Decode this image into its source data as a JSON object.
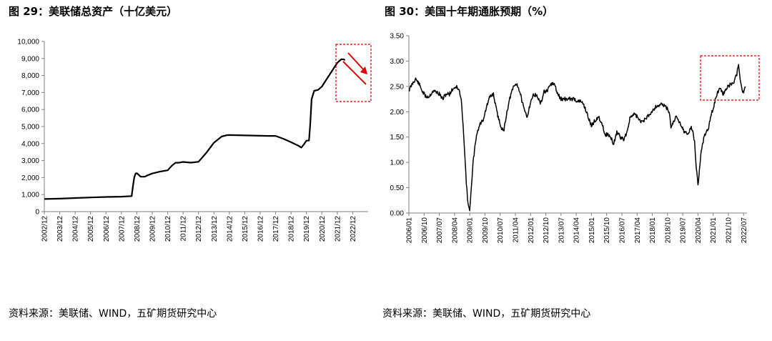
{
  "charts": [
    {
      "figure_title": "图 29：美联储总资产（十亿美元）",
      "source": "资料来源：美联储、WIND，五矿期货研究中心"
    },
    {
      "figure_title": "图 30：美国十年期通胀预期（%）",
      "source": "资料来源：美联储、WIND，五矿期货研究中心"
    }
  ],
  "colors": {
    "line": "#000000",
    "annotation": "#e00000",
    "axis": "#808080"
  },
  "chart_data": [
    {
      "type": "line",
      "title": "图 29：美联储总资产（十亿美元）",
      "xlabel": "",
      "ylabel": "",
      "ylim": [
        0,
        10000
      ],
      "y_ticks": [
        0,
        1000,
        2000,
        3000,
        4000,
        5000,
        6000,
        7000,
        8000,
        9000,
        10000
      ],
      "y_tick_labels": [
        "0",
        "1,000",
        "2,000",
        "3,000",
        "4,000",
        "5,000",
        "6,000",
        "7,000",
        "8,000",
        "9,000",
        "10,000"
      ],
      "x_ticks": [
        "2002/12",
        "2003/12",
        "2004/12",
        "2005/12",
        "2006/12",
        "2007/12",
        "2008/12",
        "2009/12",
        "2010/12",
        "2011/12",
        "2012/12",
        "2013/12",
        "2014/12",
        "2015/12",
        "2016/12",
        "2017/12",
        "2018/12",
        "2019/12",
        "2020/12",
        "2021/12",
        "2022/12"
      ],
      "xlim": [
        "2002-12",
        "2023-12"
      ],
      "grid": false,
      "legend": "none",
      "x": [
        "2002-12",
        "2003-12",
        "2004-12",
        "2005-12",
        "2006-12",
        "2007-12",
        "2008-08",
        "2008-09",
        "2008-10",
        "2008-11",
        "2008-12",
        "2009-03",
        "2009-06",
        "2009-09",
        "2009-12",
        "2010-06",
        "2010-12",
        "2011-03",
        "2011-06",
        "2011-09",
        "2011-12",
        "2012-06",
        "2012-12",
        "2013-06",
        "2013-12",
        "2014-06",
        "2014-10",
        "2014-12",
        "2015-12",
        "2016-12",
        "2017-06",
        "2017-12",
        "2018-06",
        "2018-12",
        "2019-06",
        "2019-08",
        "2019-10",
        "2019-12",
        "2020-02",
        "2020-03",
        "2020-04",
        "2020-06",
        "2020-09",
        "2020-12",
        "2021-03",
        "2021-06",
        "2021-09",
        "2021-12",
        "2022-03",
        "2022-05",
        "2022-06"
      ],
      "values": [
        740,
        760,
        800,
        830,
        860,
        880,
        910,
        1500,
        2000,
        2230,
        2260,
        2050,
        2050,
        2150,
        2240,
        2350,
        2430,
        2680,
        2870,
        2880,
        2920,
        2880,
        2930,
        3450,
        4050,
        4410,
        4490,
        4500,
        4480,
        4460,
        4450,
        4450,
        4280,
        4080,
        3860,
        3760,
        3950,
        4170,
        4180,
        5200,
        6600,
        7100,
        7150,
        7350,
        7700,
        8050,
        8400,
        8750,
        8950,
        8950,
        8900
      ],
      "annotations": [
        {
          "type": "dashed-box",
          "color": "#e00000"
        },
        {
          "type": "arrow",
          "direction": "down-right",
          "color": "#e00000"
        }
      ]
    },
    {
      "type": "line",
      "title": "图 30：美国十年期通胀预期（%）",
      "xlabel": "",
      "ylabel": "",
      "ylim": [
        0,
        3.5
      ],
      "y_ticks": [
        0,
        0.5,
        1,
        1.5,
        2,
        2.5,
        3,
        3.5
      ],
      "y_tick_labels": [
        "0.00",
        "0.50",
        "1.00",
        "1.50",
        "2.00",
        "2.50",
        "3.00",
        "3.50"
      ],
      "x_ticks": [
        "2006/01",
        "2006/10",
        "2007/07",
        "2008/04",
        "2009/01",
        "2009/10",
        "2010/07",
        "2011/04",
        "2012/01",
        "2012/10",
        "2013/07",
        "2014/04",
        "2015/01",
        "2015/10",
        "2016/07",
        "2017/04",
        "2018/01",
        "2018/10",
        "2019/07",
        "2020/04",
        "2021/01",
        "2021/10",
        "2022/07"
      ],
      "xlim": [
        "2006-01",
        "2022-09"
      ],
      "grid": false,
      "legend": "none",
      "x": [
        "2006-01",
        "2006-03",
        "2006-05",
        "2006-07",
        "2006-09",
        "2006-11",
        "2007-01",
        "2007-03",
        "2007-05",
        "2007-07",
        "2007-09",
        "2007-11",
        "2008-01",
        "2008-03",
        "2008-05",
        "2008-07",
        "2008-08",
        "2008-09",
        "2008-10",
        "2008-11",
        "2008-12",
        "2009-01",
        "2009-02",
        "2009-03",
        "2009-05",
        "2009-07",
        "2009-09",
        "2009-11",
        "2010-01",
        "2010-03",
        "2010-05",
        "2010-07",
        "2010-09",
        "2010-11",
        "2011-01",
        "2011-03",
        "2011-05",
        "2011-07",
        "2011-09",
        "2011-11",
        "2012-01",
        "2012-03",
        "2012-05",
        "2012-07",
        "2012-09",
        "2012-11",
        "2013-01",
        "2013-03",
        "2013-05",
        "2013-07",
        "2013-09",
        "2013-11",
        "2014-01",
        "2014-03",
        "2014-05",
        "2014-07",
        "2014-09",
        "2014-11",
        "2015-01",
        "2015-03",
        "2015-05",
        "2015-07",
        "2015-09",
        "2015-11",
        "2016-01",
        "2016-02",
        "2016-04",
        "2016-06",
        "2016-08",
        "2016-10",
        "2016-12",
        "2017-03",
        "2017-06",
        "2017-09",
        "2017-12",
        "2018-03",
        "2018-06",
        "2018-09",
        "2018-11",
        "2018-12",
        "2019-03",
        "2019-06",
        "2019-08",
        "2019-10",
        "2019-12",
        "2020-01",
        "2020-02",
        "2020-03",
        "2020-04",
        "2020-06",
        "2020-08",
        "2020-10",
        "2020-12",
        "2021-02",
        "2021-04",
        "2021-05",
        "2021-07",
        "2021-09",
        "2021-11",
        "2022-01",
        "2022-03",
        "2022-04",
        "2022-05",
        "2022-06",
        "2022-07",
        "2022-08"
      ],
      "values": [
        2.42,
        2.55,
        2.65,
        2.55,
        2.4,
        2.3,
        2.3,
        2.4,
        2.4,
        2.35,
        2.25,
        2.35,
        2.35,
        2.45,
        2.5,
        2.4,
        2.2,
        1.8,
        1.2,
        0.6,
        0.15,
        0.08,
        0.5,
        1.0,
        1.55,
        1.75,
        1.85,
        2.1,
        2.3,
        2.35,
        2.0,
        1.75,
        1.6,
        2.0,
        2.3,
        2.5,
        2.55,
        2.35,
        2.05,
        1.9,
        2.2,
        2.35,
        2.3,
        2.15,
        2.4,
        2.4,
        2.55,
        2.55,
        2.35,
        2.25,
        2.25,
        2.25,
        2.25,
        2.25,
        2.2,
        2.2,
        2.1,
        1.9,
        1.72,
        1.82,
        1.9,
        1.8,
        1.55,
        1.55,
        1.45,
        1.35,
        1.6,
        1.5,
        1.45,
        1.6,
        1.9,
        1.95,
        1.8,
        1.85,
        1.98,
        2.1,
        2.15,
        2.1,
        2.0,
        1.7,
        1.9,
        1.75,
        1.6,
        1.55,
        1.7,
        1.6,
        1.4,
        0.9,
        0.55,
        1.25,
        1.55,
        1.65,
        1.95,
        2.2,
        2.4,
        2.45,
        2.35,
        2.45,
        2.55,
        2.55,
        2.75,
        2.95,
        2.65,
        2.45,
        2.35,
        2.5
      ]
    }
  ]
}
